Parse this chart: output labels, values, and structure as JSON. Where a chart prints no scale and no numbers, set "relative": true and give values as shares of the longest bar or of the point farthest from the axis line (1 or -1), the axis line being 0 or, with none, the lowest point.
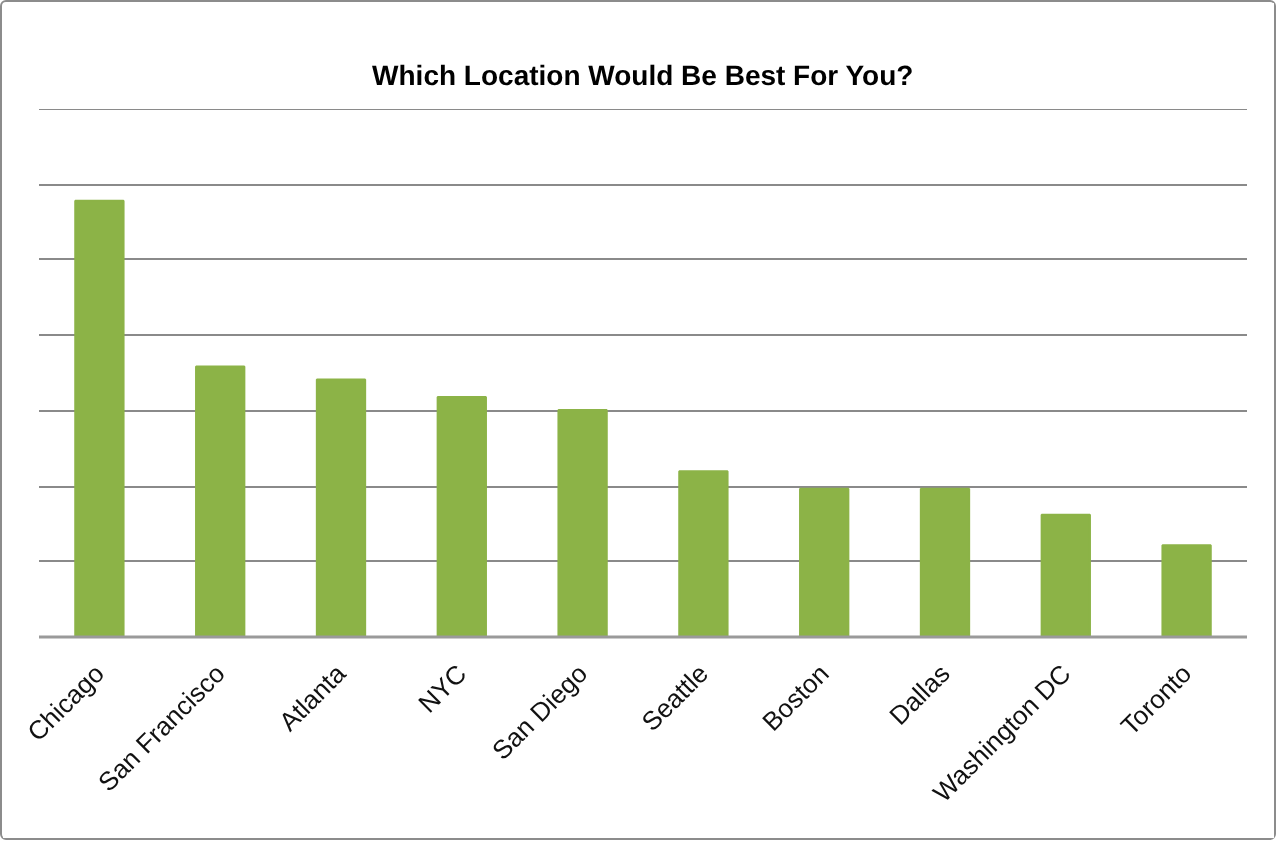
{
  "chart_data": {
    "type": "bar",
    "title": "Which Location Would Be Best For You?",
    "categories": [
      "Chicago",
      "San Francisco",
      "Atlanta",
      "NYC",
      "San Diego",
      "Seattle",
      "Boston",
      "Dallas",
      "Washington DC",
      "Toronto"
    ],
    "values": [
      1,
      0.62,
      0.59,
      0.55,
      0.52,
      0.38,
      0.34,
      0.34,
      0.28,
      0.21
    ],
    "color": "#8cb347",
    "relative": true,
    "grid": "y"
  }
}
